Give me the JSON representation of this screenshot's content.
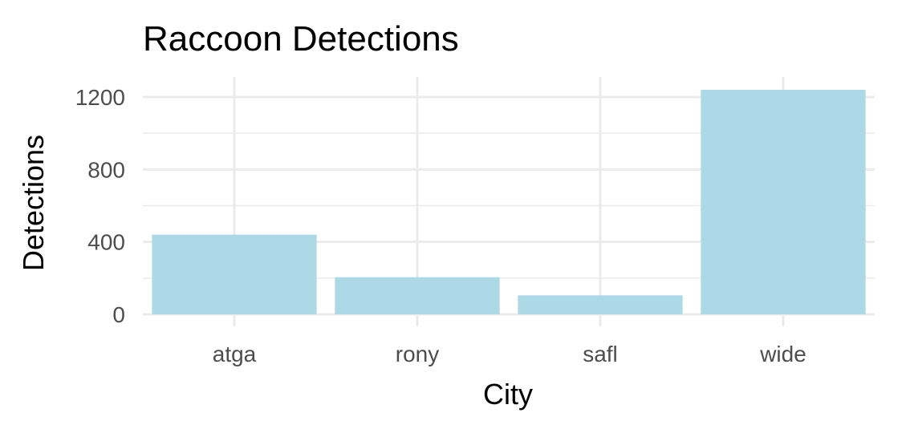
{
  "chart_data": {
    "type": "bar",
    "title": "Raccoon Detections",
    "xlabel": "City",
    "ylabel": "Detections",
    "categories": [
      "atga",
      "rony",
      "safl",
      "wide"
    ],
    "values": [
      440,
      205,
      105,
      1240
    ],
    "ylim": [
      0,
      1300
    ],
    "yticks": [
      0,
      400,
      800,
      1200
    ],
    "grid": true,
    "legend": "none",
    "colors": {
      "bar": "#add8e6",
      "grid": "#ebebeb",
      "tick_text": "#4d4d4d",
      "text": "#000000"
    }
  }
}
